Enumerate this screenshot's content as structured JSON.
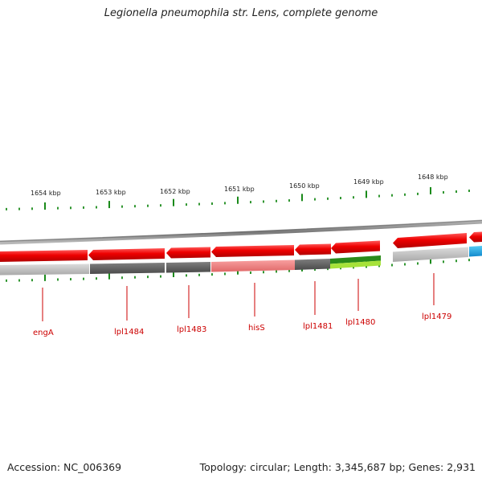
{
  "title": "Legionella pneumophila str. Lens, complete genome",
  "accession": "Accession: NC_006369",
  "summary": "Topology: circular; Length: 3,345,687 bp; Genes: 2,931",
  "ruler": [
    "1654 kbp",
    "1653 kbp",
    "1652 kbp",
    "1651 kbp",
    "1650 kbp",
    "1649 kbp",
    "1648 kbp"
  ],
  "genes": [
    {
      "name": "engA"
    },
    {
      "name": "lpl1484"
    },
    {
      "name": "lpl1483"
    },
    {
      "name": "hisS"
    },
    {
      "name": "lpl1481"
    },
    {
      "name": "lpl1480"
    },
    {
      "name": "lpl1479"
    }
  ],
  "colors": {
    "cds": "#ee0000",
    "backbone": "#8a8a8a",
    "tick": "#1a8a1a",
    "label": "#cc0000",
    "hit_light": "#c4c4c4",
    "hit_dark": "#666666",
    "hit_pink": "#f08080",
    "hit_green_dark": "#2a8a1a",
    "hit_green_light": "#a6e23a",
    "hit_blue": "#22aadd"
  }
}
